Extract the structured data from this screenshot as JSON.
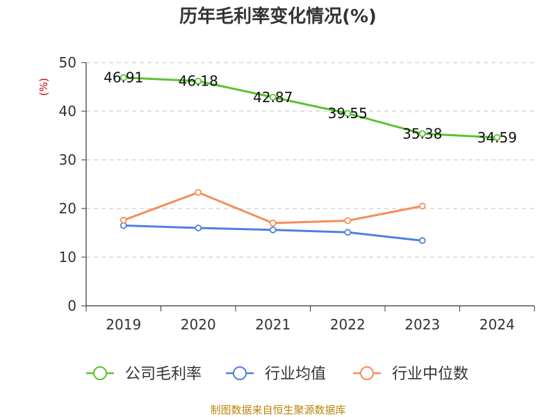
{
  "chart_data": {
    "type": "line",
    "title": "历年毛利率变化情况(%)",
    "ylabel": "(%)",
    "xlabel": "",
    "categories": [
      "2019",
      "2020",
      "2021",
      "2022",
      "2023",
      "2024"
    ],
    "ylim": [
      0,
      50
    ],
    "yticks": [
      0,
      10,
      20,
      30,
      40,
      50
    ],
    "grid": true,
    "legend_position": "bottom",
    "series": [
      {
        "name": "公司毛利率",
        "color": "#5cc130",
        "show_labels": true,
        "values": [
          46.91,
          46.18,
          42.87,
          39.55,
          35.38,
          34.59
        ],
        "labels": [
          "46.91",
          "46.18",
          "42.87",
          "39.55",
          "35.38",
          "34.59"
        ]
      },
      {
        "name": "行业均值",
        "color": "#4f7fe0",
        "show_labels": false,
        "values": [
          16.5,
          16.0,
          15.6,
          15.1,
          13.4,
          null
        ]
      },
      {
        "name": "行业中位数",
        "color": "#f68c57",
        "show_labels": false,
        "values": [
          17.6,
          23.3,
          17.0,
          17.5,
          20.5,
          null
        ]
      }
    ],
    "source": "制图数据来自恒生聚源数据库"
  }
}
